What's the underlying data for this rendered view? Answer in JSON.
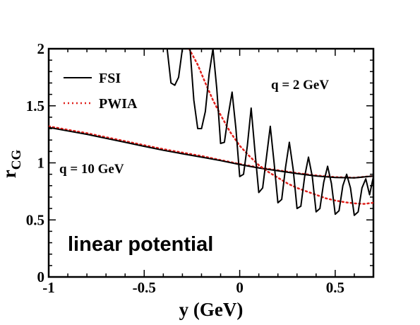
{
  "chart_data": {
    "type": "line",
    "xlabel": "y (GeV)",
    "ylabel": "r",
    "ylabel_subscript": "CG",
    "xlim": [
      -1,
      0.7
    ],
    "ylim": [
      0,
      2
    ],
    "x_ticks": [
      -1,
      -0.5,
      0,
      0.5
    ],
    "x_tick_labels": [
      "-1",
      "-0.5",
      "0",
      "0.5"
    ],
    "y_ticks": [
      0,
      0.5,
      1,
      1.5,
      2
    ],
    "y_tick_labels": [
      "0",
      "0.5",
      "1",
      "1.5",
      "2"
    ],
    "x_minor_step": 0.1,
    "y_minor_step": 0.1,
    "grid": false,
    "legend": {
      "placement": "top-left",
      "entries": [
        {
          "label": "FSI",
          "style": "solid",
          "color": "#000000"
        },
        {
          "label": "PWIA",
          "style": "dotted",
          "color": "#e0201b"
        }
      ]
    },
    "annotations": {
      "q_high": "q = 10 GeV",
      "q_low": "q = 2 GeV",
      "potential": "linear potential"
    },
    "series": [
      {
        "name": "PWIA",
        "group": "q = 10 GeV",
        "style": "dotted",
        "color": "#e0201b",
        "x": [
          -1.0,
          -0.9,
          -0.8,
          -0.7,
          -0.6,
          -0.5,
          -0.4,
          -0.3,
          -0.2,
          -0.1,
          0.0,
          0.1,
          0.2,
          0.3,
          0.4,
          0.5,
          0.6,
          0.7
        ],
        "y": [
          1.32,
          1.29,
          1.26,
          1.225,
          1.19,
          1.155,
          1.12,
          1.09,
          1.06,
          1.025,
          0.99,
          0.96,
          0.935,
          0.91,
          0.89,
          0.875,
          0.87,
          0.885
        ]
      },
      {
        "name": "FSI",
        "group": "q = 10 GeV",
        "style": "solid",
        "color": "#000000",
        "x": [
          -1.0,
          -0.9,
          -0.8,
          -0.7,
          -0.6,
          -0.5,
          -0.4,
          -0.3,
          -0.2,
          -0.1,
          0.0,
          0.1,
          0.2,
          0.3,
          0.4,
          0.5,
          0.6,
          0.7
        ],
        "y": [
          1.31,
          1.28,
          1.25,
          1.215,
          1.18,
          1.145,
          1.11,
          1.08,
          1.05,
          1.02,
          0.985,
          0.955,
          0.93,
          0.905,
          0.885,
          0.872,
          0.868,
          0.885
        ]
      },
      {
        "name": "PWIA",
        "group": "q = 2 GeV",
        "style": "dotted",
        "color": "#e0201b",
        "x": [
          -0.265,
          -0.22,
          -0.18,
          -0.14,
          -0.1,
          -0.05,
          0.0,
          0.05,
          0.1,
          0.15,
          0.2,
          0.25,
          0.3,
          0.35,
          0.4,
          0.45,
          0.5,
          0.55,
          0.6,
          0.65,
          0.7
        ],
        "y": [
          2.0,
          1.86,
          1.7,
          1.55,
          1.42,
          1.27,
          1.15,
          1.06,
          0.98,
          0.92,
          0.87,
          0.82,
          0.78,
          0.75,
          0.72,
          0.69,
          0.67,
          0.655,
          0.645,
          0.64,
          0.65
        ]
      },
      {
        "name": "FSI",
        "group": "q = 2 GeV",
        "style": "solid",
        "color": "#000000",
        "x": [
          -0.38,
          -0.36,
          -0.34,
          -0.32,
          -0.3,
          -0.28,
          -0.26,
          -0.24,
          -0.22,
          -0.2,
          -0.18,
          -0.16,
          -0.14,
          -0.12,
          -0.1,
          -0.08,
          -0.06,
          -0.04,
          -0.02,
          0.0,
          0.02,
          0.04,
          0.06,
          0.08,
          0.1,
          0.12,
          0.14,
          0.16,
          0.18,
          0.2,
          0.22,
          0.24,
          0.26,
          0.28,
          0.3,
          0.32,
          0.34,
          0.36,
          0.38,
          0.4,
          0.42,
          0.44,
          0.46,
          0.48,
          0.5,
          0.52,
          0.54,
          0.56,
          0.58,
          0.6,
          0.62,
          0.64,
          0.66,
          0.68,
          0.7
        ],
        "y": [
          2.0,
          1.7,
          1.68,
          1.75,
          2.0,
          2.0,
          2.0,
          1.55,
          1.3,
          1.3,
          1.45,
          1.78,
          2.0,
          1.65,
          1.17,
          1.18,
          1.42,
          1.62,
          1.3,
          0.88,
          0.9,
          1.15,
          1.48,
          1.1,
          0.74,
          0.78,
          1.05,
          1.32,
          1.0,
          0.65,
          0.68,
          0.96,
          1.18,
          0.94,
          0.6,
          0.62,
          0.88,
          1.05,
          0.88,
          0.57,
          0.6,
          0.83,
          0.97,
          0.82,
          0.55,
          0.58,
          0.8,
          0.9,
          0.78,
          0.54,
          0.57,
          0.78,
          0.86,
          0.72,
          0.88
        ]
      }
    ]
  }
}
